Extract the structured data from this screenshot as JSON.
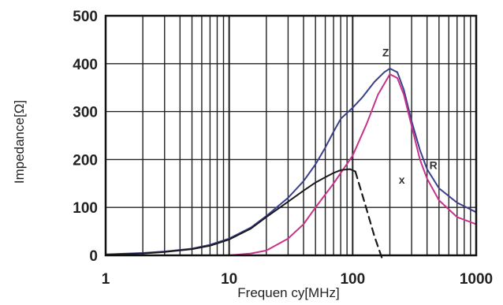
{
  "chart_data": {
    "type": "line",
    "title": "",
    "xlabel": "Frequen cy[MHz]",
    "ylabel": "Impedance[Ω]",
    "xscale": "log",
    "xlim": [
      1,
      1000
    ],
    "ylim": [
      0,
      500
    ],
    "grid": true,
    "x_ticks": [
      "1",
      "10",
      "100",
      "1000"
    ],
    "y_ticks": [
      "0",
      "100",
      "200",
      "300",
      "400",
      "500"
    ],
    "colors": {
      "Z": "#3c3f8c",
      "R": "#c8338a",
      "X": "#1a1a1a",
      "grid": "#222222",
      "frame": "#111111"
    },
    "series": [
      {
        "name": "Z",
        "style": "solid",
        "points": [
          [
            1,
            2
          ],
          [
            2,
            5
          ],
          [
            3,
            8
          ],
          [
            5,
            14
          ],
          [
            7,
            22
          ],
          [
            10,
            35
          ],
          [
            15,
            58
          ],
          [
            20,
            82
          ],
          [
            30,
            120
          ],
          [
            40,
            155
          ],
          [
            50,
            190
          ],
          [
            60,
            225
          ],
          [
            70,
            258
          ],
          [
            80,
            285
          ],
          [
            100,
            308
          ],
          [
            120,
            330
          ],
          [
            150,
            362
          ],
          [
            180,
            382
          ],
          [
            200,
            390
          ],
          [
            230,
            382
          ],
          [
            260,
            345
          ],
          [
            300,
            280
          ],
          [
            350,
            220
          ],
          [
            400,
            180
          ],
          [
            500,
            140
          ],
          [
            700,
            110
          ],
          [
            1000,
            90
          ]
        ]
      },
      {
        "name": "R",
        "style": "solid",
        "points": [
          [
            1,
            0
          ],
          [
            5,
            0
          ],
          [
            10,
            0
          ],
          [
            15,
            4
          ],
          [
            20,
            10
          ],
          [
            30,
            35
          ],
          [
            40,
            65
          ],
          [
            50,
            100
          ],
          [
            70,
            150
          ],
          [
            100,
            208
          ],
          [
            130,
            275
          ],
          [
            160,
            335
          ],
          [
            200,
            378
          ],
          [
            230,
            370
          ],
          [
            260,
            335
          ],
          [
            300,
            270
          ],
          [
            350,
            200
          ],
          [
            400,
            160
          ],
          [
            500,
            115
          ],
          [
            700,
            80
          ],
          [
            1000,
            65
          ]
        ]
      },
      {
        "name": "X",
        "style": "solid",
        "points": [
          [
            1,
            1
          ],
          [
            2,
            4
          ],
          [
            3,
            7
          ],
          [
            5,
            13
          ],
          [
            7,
            20
          ],
          [
            10,
            33
          ],
          [
            15,
            56
          ],
          [
            20,
            80
          ],
          [
            30,
            112
          ],
          [
            40,
            135
          ],
          [
            50,
            152
          ],
          [
            60,
            163
          ],
          [
            70,
            172
          ],
          [
            80,
            178
          ],
          [
            95,
            180
          ],
          [
            105,
            175
          ]
        ]
      },
      {
        "name": "X",
        "style": "dashed",
        "points": [
          [
            105,
            175
          ],
          [
            125,
            110
          ],
          [
            150,
            40
          ],
          [
            175,
            -10
          ]
        ]
      }
    ],
    "annotations": [
      {
        "text": "Z",
        "x": 185,
        "y": 415
      },
      {
        "text": "R",
        "x": 450,
        "y": 180
      },
      {
        "text": "x",
        "x": 250,
        "y": 150
      }
    ]
  }
}
